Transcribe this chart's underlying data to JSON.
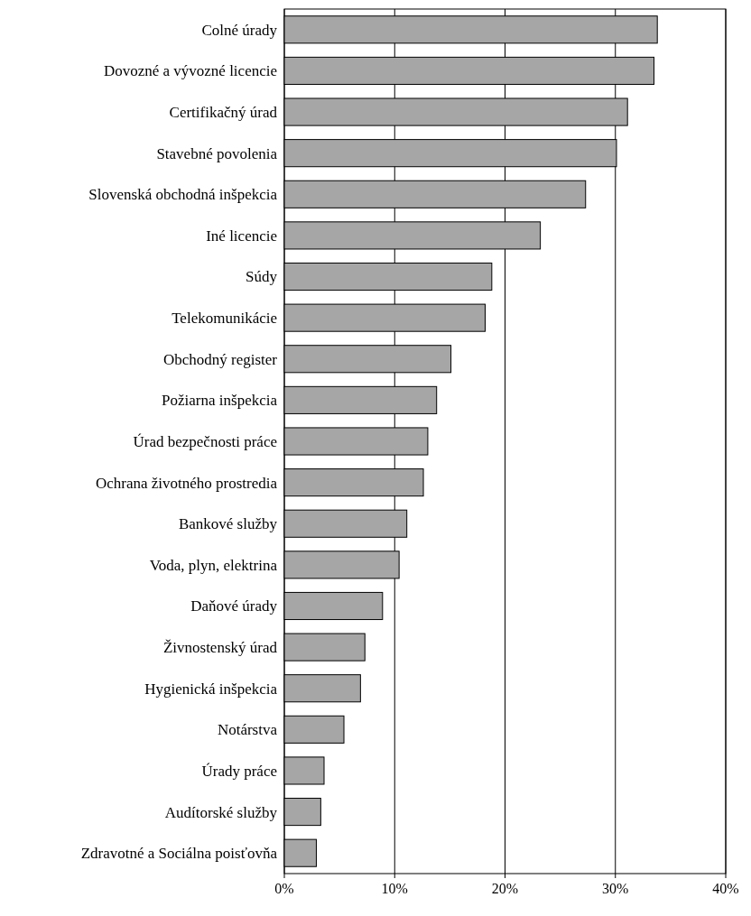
{
  "chart_data": {
    "type": "bar",
    "orientation": "horizontal",
    "categories": [
      "Colné úrady",
      "Dovozné a vývozné licencie",
      "Certifikačný úrad",
      "Stavebné povolenia",
      "Slovenská obchodná inšpekcia",
      "Iné licencie",
      "Súdy",
      "Telekomunikácie",
      "Obchodný register",
      "Požiarna inšpekcia",
      "Úrad bezpečnosti práce",
      "Ochrana životného prostredia",
      "Bankové služby",
      "Voda, plyn, elektrina",
      "Daňové úrady",
      "Živnostenský úrad",
      "Hygienická inšpekcia",
      "Notárstva",
      "Úrady práce",
      "Audítorské služby",
      "Zdravotné a Sociálna poisťovňa"
    ],
    "values": [
      33.8,
      33.5,
      31.1,
      30.1,
      27.3,
      23.2,
      18.8,
      18.2,
      15.1,
      13.8,
      13.0,
      12.6,
      11.1,
      10.4,
      8.9,
      7.3,
      6.9,
      5.4,
      3.6,
      3.3,
      2.9
    ],
    "color": "#a6a6a6",
    "xlim": [
      0,
      40
    ],
    "xticks": [
      {
        "value": 0,
        "label": "0%"
      },
      {
        "value": 10,
        "label": "10%"
      },
      {
        "value": 20,
        "label": "20%"
      },
      {
        "value": 30,
        "label": "30%"
      },
      {
        "value": 40,
        "label": "40%"
      }
    ],
    "grid": "x"
  }
}
